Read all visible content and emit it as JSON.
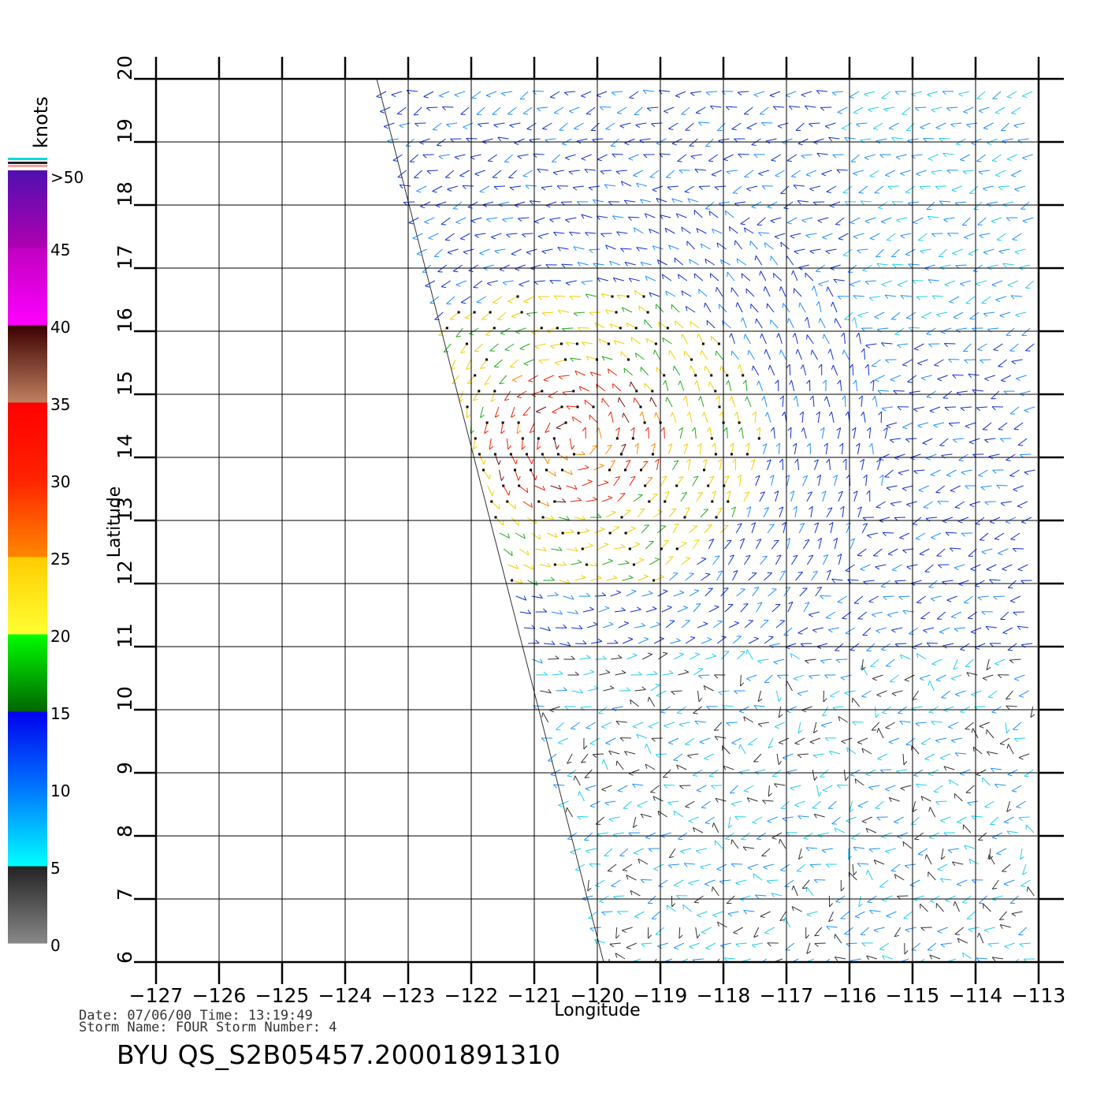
{
  "map": {
    "xlabel": "Longitude",
    "ylabel": "Latitude",
    "lon_ticks": [
      "-127",
      "-126",
      "-125",
      "-124",
      "-123",
      "-122",
      "-121",
      "-120",
      "-119",
      "-118",
      "-117",
      "-116",
      "-115",
      "-114",
      "-113"
    ],
    "lat_ticks": [
      "6",
      "7",
      "8",
      "9",
      "10",
      "11",
      "12",
      "13",
      "14",
      "15",
      "16",
      "17",
      "18",
      "19",
      "20"
    ],
    "lon_range": [
      -127,
      -113
    ],
    "lat_range": [
      6,
      20
    ],
    "swath_west_edge": [
      [
        20,
        -123.5
      ],
      [
        6,
        -119.9
      ]
    ],
    "grid": true
  },
  "legend": {
    "units": "knots",
    "labels": [
      ">50",
      "45",
      "40",
      "35",
      "30",
      "25",
      "20",
      "15",
      "10",
      "5",
      "0"
    ],
    "bands": [
      {
        "from": 0,
        "to": 5,
        "color_low": "#888888",
        "color_high": "#222222"
      },
      {
        "from": 5,
        "to": 10,
        "color_low": "#00ffff",
        "color_high": "#0066ff"
      },
      {
        "from": 10,
        "to": 15,
        "color_low": "#0066ff",
        "color_high": "#0000ee"
      },
      {
        "from": 15,
        "to": 20,
        "color_low": "#006600",
        "color_high": "#00ff00"
      },
      {
        "from": 20,
        "to": 25,
        "color_low": "#ffff33",
        "color_high": "#ffcc00"
      },
      {
        "from": 25,
        "to": 30,
        "color_low": "#ff8800",
        "color_high": "#ff2200"
      },
      {
        "from": 30,
        "to": 35,
        "color_low": "#ff2200",
        "color_high": "#ff0000"
      },
      {
        "from": 35,
        "to": 40,
        "color_low": "#c08060",
        "color_high": "#3a0000"
      },
      {
        "from": 40,
        "to": 45,
        "color_low": "#ff00ff",
        "color_high": "#c000c0"
      },
      {
        "from": 45,
        "to": 50,
        "color_low": "#b000b0",
        "color_high": "#5010b0"
      }
    ]
  },
  "footer": {
    "line1": "Date: 07/06/00   Time: 13:19:49",
    "line2": "Storm Name: FOUR   Storm Number: 4",
    "title": "BYU QS_S2B05457.20001891310"
  }
}
